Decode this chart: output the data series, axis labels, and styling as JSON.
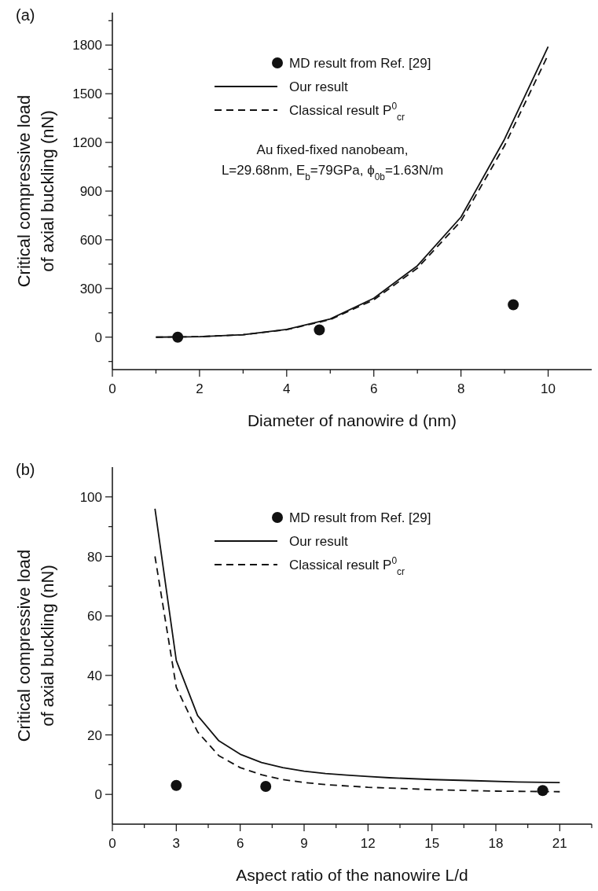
{
  "chart_data": [
    {
      "type": "line",
      "title": "(a)",
      "xlabel": "Diameter of nanowire d (nm)",
      "ylabel": "Critical compressive load\nof axial buckling  (nN)",
      "xlim": [
        0,
        11
      ],
      "xticks": [
        0,
        {
          "value": 1,
          "label": null
        },
        2,
        {
          "value": 3,
          "label": null
        },
        4,
        {
          "value": 5,
          "label": null
        },
        6,
        {
          "value": 7,
          "label": null
        },
        8,
        {
          "value": 9,
          "label": null
        },
        10
      ],
      "ylim": [
        -200,
        2000
      ],
      "yticks": [
        {
          "value": -150,
          "label": null
        },
        0,
        {
          "value": 150,
          "label": null
        },
        300,
        {
          "value": 450,
          "label": null
        },
        600,
        {
          "value": 750,
          "label": null
        },
        900,
        {
          "value": 1050,
          "label": null
        },
        1200,
        {
          "value": 1350,
          "label": null
        },
        1500,
        {
          "value": 1650,
          "label": null
        },
        1800,
        {
          "value": 1950,
          "label": null
        }
      ],
      "legend": "top",
      "grid": false,
      "annotations": [
        "Au  fixed-fixed nanobeam,\nL=29.68nm,  E$_{b}$=79GPa,  ϕ$_{0b}$=1.63N/m"
      ],
      "series": [
        {
          "name": "MD result from Ref. [29]",
          "type": "scatter",
          "marker": "circle",
          "color": "#111111",
          "x": [
            1.5,
            4.75,
            9.2
          ],
          "values": [
            0,
            45,
            200
          ]
        },
        {
          "name": "Our result",
          "line_style": "solid",
          "marker": "none",
          "color": "#111111",
          "x": [
            1,
            2,
            3,
            4,
            5,
            6,
            7,
            8,
            9,
            10
          ],
          "values": [
            0,
            3,
            15,
            48,
            112,
            240,
            440,
            740,
            1220,
            1790
          ]
        },
        {
          "name": "Classical result P$^{0}$$_{cr}$",
          "line_style": "dashed",
          "marker": "none",
          "color": "#111111",
          "x": [
            1,
            2,
            3,
            4,
            5,
            6,
            7,
            8,
            9,
            10
          ],
          "values": [
            0,
            3,
            15,
            46,
            108,
            230,
            425,
            715,
            1180,
            1740
          ]
        }
      ]
    },
    {
      "type": "line",
      "title": "(b)",
      "xlabel": "Aspect ratio of the nanowire L/d",
      "ylabel": "Critical compressive load\nof axial buckling  (nN)",
      "xlim": [
        0,
        22.5
      ],
      "xticks": [
        0,
        {
          "value": 1.5,
          "label": null
        },
        3,
        {
          "value": 4.5,
          "label": null
        },
        6,
        {
          "value": 7.5,
          "label": null
        },
        9,
        {
          "value": 10.5,
          "label": null
        },
        12,
        {
          "value": 13.5,
          "label": null
        },
        15,
        {
          "value": 16.5,
          "label": null
        },
        18,
        {
          "value": 19.5,
          "label": null
        },
        21,
        {
          "value": 22.5,
          "label": null
        }
      ],
      "ylim": [
        -10,
        110
      ],
      "yticks": [
        0,
        {
          "value": 10,
          "label": null
        },
        20,
        {
          "value": 30,
          "label": null
        },
        40,
        {
          "value": 50,
          "label": null
        },
        60,
        {
          "value": 70,
          "label": null
        },
        80,
        {
          "value": 90,
          "label": null
        },
        100
      ],
      "legend": "top",
      "grid": false,
      "series": [
        {
          "name": "MD result from Ref. [29]",
          "type": "scatter",
          "marker": "circle",
          "color": "#111111",
          "x": [
            3,
            7.2,
            20.2
          ],
          "values": [
            3,
            2.7,
            1.3
          ]
        },
        {
          "name": "Our result",
          "line_style": "solid",
          "marker": "none",
          "color": "#111111",
          "x": [
            2,
            3,
            4,
            5,
            6,
            7,
            8,
            9,
            10,
            11,
            12,
            13,
            15,
            17,
            19,
            21
          ],
          "values": [
            96,
            45,
            26.5,
            18,
            13.5,
            10.7,
            9,
            7.8,
            7,
            6.5,
            6,
            5.6,
            5,
            4.6,
            4.2,
            4
          ]
        },
        {
          "name": "Classical result P$^{0}$$_{cr}$",
          "line_style": "dashed",
          "marker": "none",
          "color": "#111111",
          "x": [
            2,
            3,
            4,
            5,
            6,
            7,
            8,
            9,
            10,
            12,
            15,
            18,
            21
          ],
          "values": [
            80,
            36,
            21,
            13,
            9,
            6.6,
            5,
            4,
            3.3,
            2.4,
            1.6,
            1.1,
            0.9
          ]
        }
      ]
    }
  ]
}
